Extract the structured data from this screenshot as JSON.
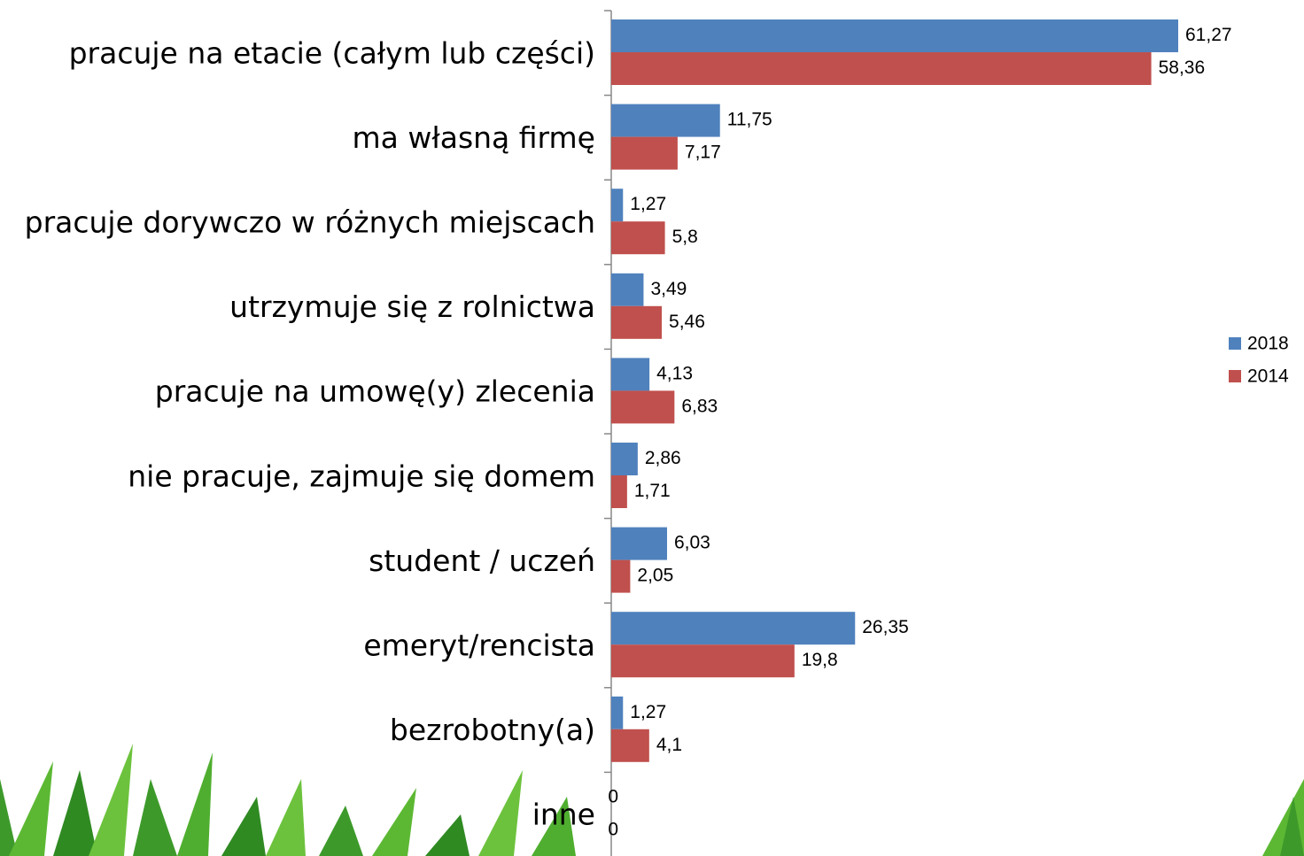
{
  "chart_data": {
    "type": "bar",
    "orientation": "horizontal",
    "categories": [
      "pracuje na etacie (całym lub części)",
      "ma własną firmę",
      "pracuje dorywczo w różnych miejscach",
      "utrzymuje się z rolnictwa",
      "pracuje na umowę(y) zlecenia",
      "nie pracuje, zajmuje się domem",
      "student / uczeń",
      "emeryt/rencista",
      "bezrobotny(a)",
      "inne"
    ],
    "series": [
      {
        "name": "2018",
        "color": "#4f81bd",
        "values": [
          61.27,
          11.75,
          1.27,
          3.49,
          4.13,
          2.86,
          6.03,
          26.35,
          1.27,
          0
        ],
        "value_labels": [
          "61,27",
          "11,75",
          "1,27",
          "3,49",
          "4,13",
          "2,86",
          "6,03",
          "26,35",
          "1,27",
          "0"
        ]
      },
      {
        "name": "2014",
        "color": "#c0504d",
        "values": [
          58.36,
          7.17,
          5.8,
          5.46,
          6.83,
          1.71,
          2.05,
          19.8,
          4.1,
          0
        ],
        "value_labels": [
          "58,36",
          "7,17",
          "5,8",
          "5,46",
          "6,83",
          "1,71",
          "2,05",
          "19,8",
          "4,1",
          "0"
        ]
      }
    ],
    "legend": "right"
  }
}
